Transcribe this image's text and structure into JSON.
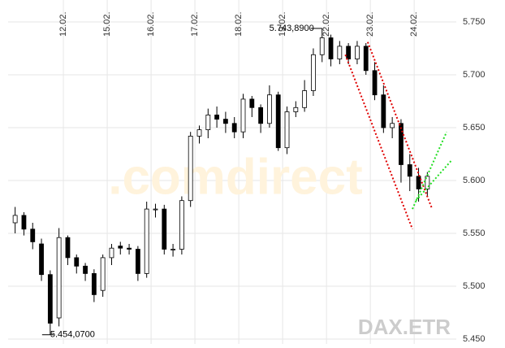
{
  "chart_data": {
    "type": "candlestick",
    "watermark": ".comdirect",
    "source_label": "DAX.ETR",
    "x": [
      -0.1,
      0.1,
      0.3,
      0.5,
      0.7,
      0.9,
      1.1,
      1.3,
      1.5,
      1.7,
      1.9,
      2.1,
      2.3,
      2.5,
      2.7,
      2.9,
      3.1,
      3.3,
      3.5,
      3.7,
      3.9,
      4.1,
      4.3,
      4.5,
      4.7,
      4.9,
      5.1,
      5.3,
      5.5,
      5.7,
      5.9,
      6.1,
      6.3,
      6.5,
      6.7,
      6.9,
      7.1,
      7.3,
      7.5,
      7.7,
      7.9,
      8.1,
      8.3,
      8.5,
      8.7,
      8.9,
      9.1,
      9.3
    ],
    "open": [
      5560,
      5567,
      5554,
      5540,
      5511,
      5470,
      5546,
      5527,
      5519,
      5512,
      5496,
      5527,
      5538,
      5536,
      5535,
      5512,
      5573,
      5573,
      5535,
      5535,
      5581,
      5642,
      5648,
      5662,
      5658,
      5654,
      5646,
      5677,
      5669,
      5654,
      5681,
      5631,
      5665,
      5669,
      5685,
      5719,
      5735,
      5715,
      5727,
      5715,
      5727,
      5704,
      5681,
      5650,
      5654,
      5615,
      5604,
      5592
    ],
    "high": [
      5575,
      5570,
      5560,
      5545,
      5515,
      5555,
      5548,
      5530,
      5522,
      5516,
      5530,
      5540,
      5542,
      5540,
      5538,
      5580,
      5578,
      5577,
      5540,
      5585,
      5646,
      5652,
      5668,
      5670,
      5665,
      5660,
      5682,
      5680,
      5672,
      5690,
      5684,
      5670,
      5675,
      5695,
      5725,
      5743.89,
      5738,
      5732,
      5730,
      5732,
      5730,
      5712,
      5690,
      5660,
      5658,
      5625,
      5612,
      5608
    ],
    "low": [
      5550,
      5548,
      5535,
      5505,
      5454.07,
      5462,
      5520,
      5512,
      5505,
      5485,
      5490,
      5520,
      5530,
      5530,
      5505,
      5508,
      5565,
      5530,
      5528,
      5530,
      5575,
      5635,
      5640,
      5650,
      5645,
      5640,
      5640,
      5660,
      5645,
      5650,
      5628,
      5625,
      5660,
      5665,
      5680,
      5712,
      5708,
      5710,
      5710,
      5710,
      5700,
      5676,
      5645,
      5640,
      5598,
      5590,
      5580,
      5585
    ],
    "close": [
      5567,
      5554,
      5542,
      5511,
      5465,
      5546,
      5527,
      5519,
      5512,
      5492,
      5527,
      5536,
      5536,
      5535,
      5512,
      5573,
      5573,
      5535,
      5535,
      5581,
      5642,
      5648,
      5662,
      5658,
      5654,
      5646,
      5677,
      5669,
      5654,
      5681,
      5631,
      5665,
      5669,
      5685,
      5719,
      5735,
      5715,
      5727,
      5715,
      5727,
      5704,
      5681,
      5650,
      5654,
      5615,
      5604,
      5592,
      5604
    ],
    "up_color": "#ffffff",
    "down_color": "#000000",
    "wick_color": "#000000",
    "xlim": [
      -0.26,
      9.96
    ],
    "xticks": [
      {
        "value": 1,
        "label": "12.02."
      },
      {
        "value": 2,
        "label": "15.02."
      },
      {
        "value": 3,
        "label": "16.02."
      },
      {
        "value": 4,
        "label": "17.02."
      },
      {
        "value": 5,
        "label": "18.02."
      },
      {
        "value": 6,
        "label": "19.02."
      },
      {
        "value": 7,
        "label": "22.02."
      },
      {
        "value": 8,
        "label": "23.02."
      },
      {
        "value": 9,
        "label": "24.02."
      }
    ],
    "ylim": [
      5435,
      5765
    ],
    "yticks": [
      {
        "value": 5450,
        "label": "5.450"
      },
      {
        "value": 5500,
        "label": "5.500"
      },
      {
        "value": 5550,
        "label": "5.550"
      },
      {
        "value": 5600,
        "label": "5.600"
      },
      {
        "value": 5650,
        "label": "5.650"
      },
      {
        "value": 5700,
        "label": "5.700"
      },
      {
        "value": 5750,
        "label": "5.750"
      }
    ],
    "grid": true,
    "annotations": [
      {
        "label": "5.743,8900",
        "x": 6.9,
        "value": 5743.89,
        "side": "left"
      },
      {
        "label": "5.454,0700",
        "x": 0.7,
        "value": 5454.07,
        "side": "right"
      }
    ],
    "trend_lines": [
      {
        "color": "#e00000",
        "x": [
          7.43,
          8.96
        ],
        "y": [
          5719,
          5554
        ]
      },
      {
        "color": "#e00000",
        "x": [
          7.94,
          9.41
        ],
        "y": [
          5731,
          5573
        ]
      },
      {
        "color": "#22dd22",
        "x": [
          8.96,
          9.74
        ],
        "y": [
          5573,
          5646
        ]
      },
      {
        "color": "#22dd22",
        "x": [
          9.04,
          9.85
        ],
        "y": [
          5581,
          5619
        ]
      }
    ]
  }
}
